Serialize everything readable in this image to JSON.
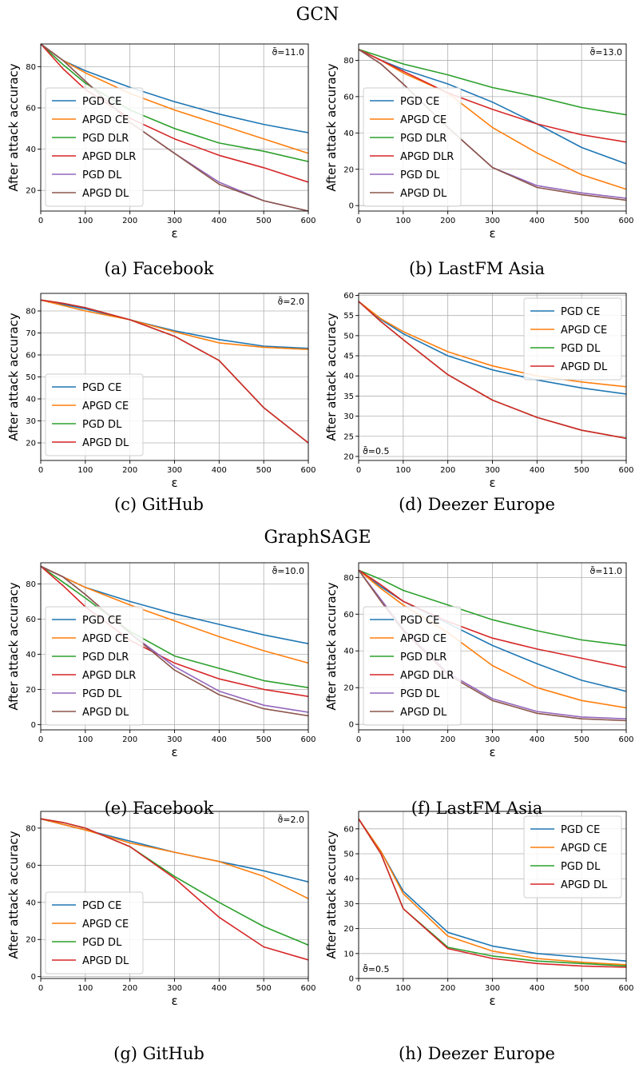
{
  "sections": [
    {
      "title": "GCN"
    },
    {
      "title": "GraphSAGE"
    }
  ],
  "captions": [
    "(a) Facebook",
    "(b) LastFM Asia",
    "(c) GitHub",
    "(d) Deezer Europe",
    "(e) Facebook",
    "(f) LastFM Asia",
    "(g) GitHub",
    "(h) Deezer Europe"
  ],
  "chart_data": [
    {
      "type": "line",
      "title": "",
      "xlabel": "ε",
      "ylabel": "After attack accuracy",
      "xlim": [
        0,
        600
      ],
      "ylim": [
        10,
        91
      ],
      "xticks": [
        0,
        100,
        200,
        300,
        400,
        500,
        600
      ],
      "yticks": [
        20,
        40,
        60,
        80
      ],
      "annotation": "ϑ̄=11.0",
      "annotation_position": "top-right",
      "legend_position": "bottom-left",
      "grid": true,
      "x": [
        0,
        50,
        100,
        200,
        300,
        400,
        500,
        600
      ],
      "series": [
        {
          "name": "PGD CE",
          "color": "#1f77b4",
          "values": [
            91,
            83,
            78,
            70,
            63,
            57,
            52,
            48
          ]
        },
        {
          "name": "APGD CE",
          "color": "#ff7f0e",
          "values": [
            91,
            83,
            77,
            67,
            59,
            52,
            45,
            38
          ]
        },
        {
          "name": "PGD DLR",
          "color": "#2ca02c",
          "values": [
            91,
            81,
            72,
            59,
            50,
            43,
            39,
            34
          ]
        },
        {
          "name": "APGD DLR",
          "color": "#d62728",
          "values": [
            91,
            79,
            69,
            55,
            45,
            37,
            31,
            24
          ]
        },
        {
          "name": "PGD DL",
          "color": "#9467bd",
          "values": [
            91,
            83,
            73,
            53,
            38,
            24,
            15,
            10
          ]
        },
        {
          "name": "APGD DL",
          "color": "#8c564b",
          "values": [
            91,
            83,
            73,
            53,
            38,
            23,
            15,
            10
          ]
        }
      ]
    },
    {
      "type": "line",
      "title": "",
      "xlabel": "ε",
      "ylabel": "After attack accuracy",
      "xlim": [
        0,
        600
      ],
      "ylim": [
        -3,
        89
      ],
      "xticks": [
        0,
        100,
        200,
        300,
        400,
        500,
        600
      ],
      "yticks": [
        0,
        20,
        40,
        60,
        80
      ],
      "annotation": "ϑ̄=13.0",
      "annotation_position": "top-right",
      "legend_position": "bottom-left",
      "grid": true,
      "x": [
        0,
        50,
        100,
        200,
        300,
        400,
        500,
        600
      ],
      "series": [
        {
          "name": "PGD CE",
          "color": "#1f77b4",
          "values": [
            86,
            80,
            75,
            67,
            57,
            45,
            32,
            23
          ]
        },
        {
          "name": "APGD CE",
          "color": "#ff7f0e",
          "values": [
            86,
            80,
            73,
            62,
            43,
            29,
            17,
            9
          ]
        },
        {
          "name": "PGD DLR",
          "color": "#2ca02c",
          "values": [
            86,
            82,
            78,
            72,
            65,
            60,
            54,
            50
          ]
        },
        {
          "name": "APGD DLR",
          "color": "#d62728",
          "values": [
            86,
            80,
            74,
            62,
            53,
            45,
            39,
            35
          ]
        },
        {
          "name": "PGD DL",
          "color": "#9467bd",
          "values": [
            86,
            78,
            67,
            43,
            21,
            11,
            7,
            4
          ]
        },
        {
          "name": "APGD DL",
          "color": "#8c564b",
          "values": [
            86,
            78,
            67,
            43,
            21,
            10,
            6,
            3
          ]
        }
      ]
    },
    {
      "type": "line",
      "title": "",
      "xlabel": "ε",
      "ylabel": "After attack accuracy",
      "xlim": [
        0,
        600
      ],
      "ylim": [
        12,
        88
      ],
      "xticks": [
        0,
        100,
        200,
        300,
        400,
        500,
        600
      ],
      "yticks": [
        20,
        30,
        40,
        50,
        60,
        70,
        80
      ],
      "annotation": "ϑ̄=2.0",
      "annotation_position": "top-right",
      "legend_position": "bottom-left",
      "grid": true,
      "x": [
        0,
        50,
        100,
        200,
        300,
        400,
        500,
        600
      ],
      "series": [
        {
          "name": "PGD CE",
          "color": "#1f77b4",
          "values": [
            85,
            83,
            81,
            76,
            71,
            67,
            64,
            63
          ]
        },
        {
          "name": "APGD CE",
          "color": "#ff7f0e",
          "values": [
            85,
            82.5,
            80,
            76,
            70.5,
            65.5,
            63.5,
            62.5
          ]
        },
        {
          "name": "PGD DL",
          "color": "#2ca02c",
          "values": [
            85,
            83.5,
            81.5,
            76,
            68.5,
            57.5,
            36,
            20
          ]
        },
        {
          "name": "APGD DL",
          "color": "#d62728",
          "values": [
            85,
            83.5,
            81.5,
            76,
            68.5,
            57.5,
            36,
            20
          ]
        }
      ]
    },
    {
      "type": "line",
      "title": "",
      "xlabel": "ε",
      "ylabel": "After attack accuracy",
      "xlim": [
        0,
        600
      ],
      "ylim": [
        19,
        60.5
      ],
      "xticks": [
        0,
        100,
        200,
        300,
        400,
        500,
        600
      ],
      "yticks": [
        20,
        25,
        30,
        35,
        40,
        45,
        50,
        55,
        60
      ],
      "annotation": "ϑ̄=0.5",
      "annotation_position": "bottom-left",
      "legend_position": "top-right",
      "grid": true,
      "x": [
        0,
        50,
        100,
        200,
        300,
        400,
        500,
        600
      ],
      "series": [
        {
          "name": "PGD CE",
          "color": "#1f77b4",
          "values": [
            58.5,
            54,
            50.5,
            45,
            41.5,
            39,
            37,
            35.5
          ]
        },
        {
          "name": "APGD CE",
          "color": "#ff7f0e",
          "values": [
            58.5,
            54.2,
            51,
            46,
            42.5,
            40,
            38.5,
            37.3
          ]
        },
        {
          "name": "PGD DL",
          "color": "#2ca02c",
          "values": [
            58.5,
            53.5,
            49,
            40.3,
            34,
            29.7,
            26.5,
            24.5
          ]
        },
        {
          "name": "APGD DL",
          "color": "#d62728",
          "values": [
            58.5,
            53.5,
            49,
            40.3,
            34,
            29.7,
            26.5,
            24.5
          ]
        }
      ]
    },
    {
      "type": "line",
      "title": "",
      "xlabel": "ε",
      "ylabel": "After attack accuracy",
      "xlim": [
        0,
        600
      ],
      "ylim": [
        -3,
        92
      ],
      "xticks": [
        0,
        100,
        200,
        300,
        400,
        500,
        600
      ],
      "yticks": [
        0,
        20,
        40,
        60,
        80
      ],
      "annotation": "ϑ̄=10.0",
      "annotation_position": "top-right",
      "legend_position": "bottom-left",
      "grid": true,
      "x": [
        0,
        50,
        100,
        200,
        300,
        400,
        500,
        600
      ],
      "series": [
        {
          "name": "PGD CE",
          "color": "#1f77b4",
          "values": [
            90,
            84,
            78,
            70,
            63,
            57,
            51,
            46
          ]
        },
        {
          "name": "APGD CE",
          "color": "#ff7f0e",
          "values": [
            90,
            84,
            78,
            68,
            59,
            50,
            42,
            35
          ]
        },
        {
          "name": "PGD DLR",
          "color": "#2ca02c",
          "values": [
            90,
            81,
            72,
            53,
            39,
            32,
            25,
            21
          ]
        },
        {
          "name": "APGD DLR",
          "color": "#d62728",
          "values": [
            90,
            79,
            67,
            48,
            35,
            26,
            20,
            16
          ]
        },
        {
          "name": "PGD DL",
          "color": "#9467bd",
          "values": [
            90,
            84,
            74,
            52,
            33,
            19,
            11,
            7
          ]
        },
        {
          "name": "APGD DL",
          "color": "#8c564b",
          "values": [
            90,
            84,
            74,
            52,
            31,
            17,
            9,
            5
          ]
        }
      ]
    },
    {
      "type": "line",
      "title": "",
      "xlabel": "ε",
      "ylabel": "After attack accuracy",
      "xlim": [
        0,
        600
      ],
      "ylim": [
        -3,
        88
      ],
      "xticks": [
        0,
        100,
        200,
        300,
        400,
        500,
        600
      ],
      "yticks": [
        0,
        20,
        40,
        60,
        80
      ],
      "annotation": "ϑ̄=11.0",
      "annotation_position": "top-right",
      "legend_position": "bottom-left",
      "grid": true,
      "x": [
        0,
        50,
        100,
        200,
        300,
        400,
        500,
        600
      ],
      "series": [
        {
          "name": "PGD CE",
          "color": "#1f77b4",
          "values": [
            84,
            75,
            67,
            55,
            43,
            33,
            24,
            18
          ]
        },
        {
          "name": "APGD CE",
          "color": "#ff7f0e",
          "values": [
            84,
            74,
            65,
            50,
            32,
            20,
            13,
            9
          ]
        },
        {
          "name": "PGD DLR",
          "color": "#2ca02c",
          "values": [
            84,
            79,
            73,
            65,
            57,
            51,
            46,
            43
          ]
        },
        {
          "name": "APGD DLR",
          "color": "#d62728",
          "values": [
            84,
            76,
            67,
            56,
            47,
            41,
            36,
            31
          ]
        },
        {
          "name": "PGD DL",
          "color": "#9467bd",
          "values": [
            84,
            68,
            52,
            28,
            14,
            7,
            4,
            3
          ]
        },
        {
          "name": "APGD DL",
          "color": "#8c564b",
          "values": [
            84,
            67,
            51,
            27,
            13,
            6,
            3,
            2
          ]
        }
      ]
    },
    {
      "type": "line",
      "title": "",
      "xlabel": "ε",
      "ylabel": "After attack accuracy",
      "xlim": [
        0,
        600
      ],
      "ylim": [
        -1,
        89
      ],
      "xticks": [
        0,
        100,
        200,
        300,
        400,
        500,
        600
      ],
      "yticks": [
        0,
        20,
        40,
        60,
        80
      ],
      "annotation": "ϑ̄=2.0",
      "annotation_position": "top-right",
      "legend_position": "bottom-left",
      "grid": true,
      "x": [
        0,
        50,
        100,
        200,
        300,
        400,
        500,
        600
      ],
      "series": [
        {
          "name": "PGD CE",
          "color": "#1f77b4",
          "values": [
            85,
            82,
            79,
            73,
            67,
            62,
            57,
            51
          ]
        },
        {
          "name": "APGD CE",
          "color": "#ff7f0e",
          "values": [
            85,
            82,
            79,
            72,
            67,
            62,
            54,
            42
          ]
        },
        {
          "name": "PGD DL",
          "color": "#2ca02c",
          "values": [
            85,
            83,
            80,
            70,
            54,
            40,
            27,
            17
          ]
        },
        {
          "name": "APGD DL",
          "color": "#d62728",
          "values": [
            85,
            83,
            80,
            70,
            53,
            32,
            16,
            9
          ]
        }
      ]
    },
    {
      "type": "line",
      "title": "",
      "xlabel": "ε",
      "ylabel": "After attack accuracy",
      "xlim": [
        0,
        600
      ],
      "ylim": [
        0,
        67
      ],
      "xticks": [
        0,
        100,
        200,
        300,
        400,
        500,
        600
      ],
      "yticks": [
        0,
        10,
        20,
        30,
        40,
        50,
        60
      ],
      "annotation": "ϑ̄=0.5",
      "annotation_position": "bottom-left",
      "legend_position": "top-right",
      "grid": true,
      "x": [
        0,
        50,
        100,
        200,
        300,
        400,
        500,
        600
      ],
      "series": [
        {
          "name": "PGD CE",
          "color": "#1f77b4",
          "values": [
            64,
            51,
            35,
            18.5,
            13,
            10,
            8.5,
            7
          ]
        },
        {
          "name": "APGD CE",
          "color": "#ff7f0e",
          "values": [
            64,
            51,
            34,
            17,
            11,
            8,
            6.5,
            5.5
          ]
        },
        {
          "name": "PGD DL",
          "color": "#2ca02c",
          "values": [
            64,
            50,
            28,
            12.5,
            9,
            7,
            6,
            5
          ]
        },
        {
          "name": "APGD DL",
          "color": "#d62728",
          "values": [
            64,
            50,
            28,
            12,
            8,
            6,
            5,
            4.5
          ]
        }
      ]
    }
  ]
}
